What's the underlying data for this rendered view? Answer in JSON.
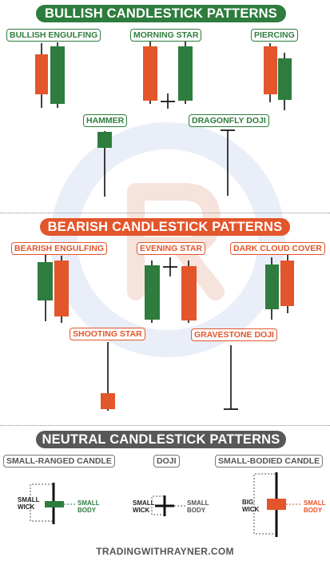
{
  "bullish": {
    "title": "BULLISH CANDLESTICK PATTERNS",
    "labels": {
      "engulfing": "BULLISH ENGULFING",
      "morning_star": "MORNING STAR",
      "piercing": "PIERCING",
      "hammer": "HAMMER",
      "dragonfly": "DRAGONFLY DOJI"
    }
  },
  "bearish": {
    "title": "BEARISH  CANDLESTICK PATTERNS",
    "labels": {
      "engulfing": "BEARISH ENGULFING",
      "evening_star": "EVENING STAR",
      "dark_cloud": "DARK CLOUD COVER",
      "shooting_star": "SHOOTING STAR",
      "gravestone": "GRAVESTONE DOJI"
    }
  },
  "neutral": {
    "title": "NEUTRAL CANDLESTICK PATTERNS",
    "labels": {
      "small_ranged": "SMALL-RANGED CANDLE",
      "doji": "DOJI",
      "small_bodied": "SMALL-BODIED CANDLE"
    },
    "annotations": {
      "small_wick_1": "SMALL",
      "small_wick_2": "WICK",
      "small_body_1": "SMALL",
      "small_body_2": "BODY",
      "big_wick_1": "BIG",
      "big_wick_2": "WICK"
    }
  },
  "footer": "TRADINGWITHRAYNER.COM",
  "colors": {
    "bull": "#2e7d3e",
    "bear": "#e3552b",
    "neutral": "#585858"
  }
}
